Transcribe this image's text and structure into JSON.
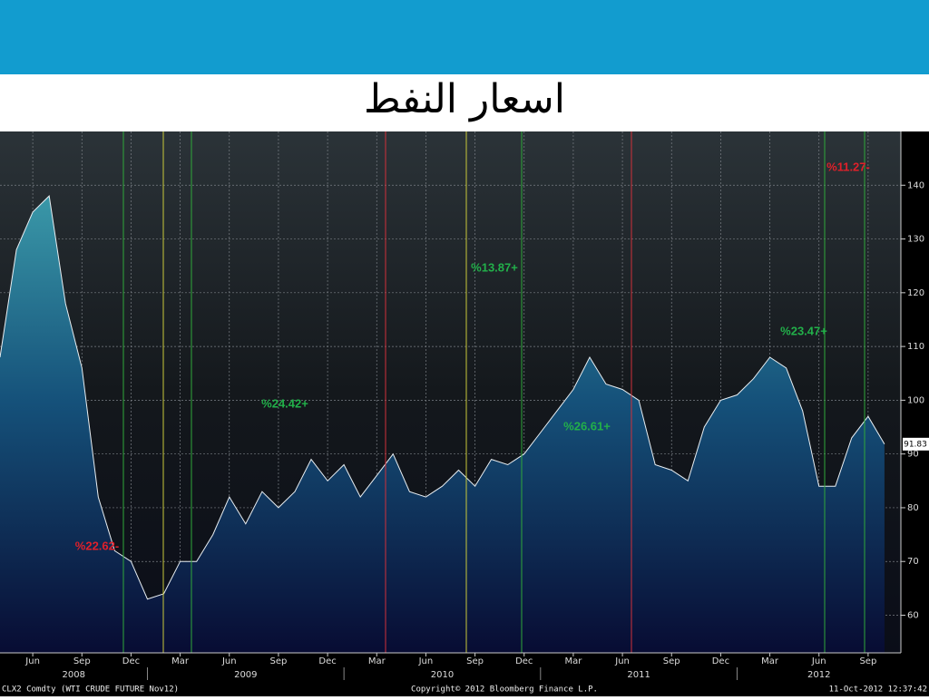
{
  "chart_data": {
    "type": "area",
    "title": "اسعار النفط",
    "x": [
      "2008-04",
      "2008-05",
      "2008-06",
      "2008-07",
      "2008-08",
      "2008-09",
      "2008-10",
      "2008-11",
      "2008-12",
      "2009-01",
      "2009-02",
      "2009-03",
      "2009-04",
      "2009-05",
      "2009-06",
      "2009-07",
      "2009-08",
      "2009-09",
      "2009-10",
      "2009-11",
      "2009-12",
      "2010-01",
      "2010-02",
      "2010-03",
      "2010-04",
      "2010-05",
      "2010-06",
      "2010-07",
      "2010-08",
      "2010-09",
      "2010-10",
      "2010-11",
      "2010-12",
      "2011-01",
      "2011-02",
      "2011-03",
      "2011-04",
      "2011-05",
      "2011-06",
      "2011-07",
      "2011-08",
      "2011-09",
      "2011-10",
      "2011-11",
      "2011-12",
      "2012-01",
      "2012-02",
      "2012-03",
      "2012-04",
      "2012-05",
      "2012-06",
      "2012-07",
      "2012-08",
      "2012-09",
      "2012-10"
    ],
    "values": [
      108,
      128,
      135,
      138,
      118,
      106,
      82,
      72,
      70,
      63,
      64,
      70,
      70,
      75,
      82,
      77,
      83,
      80,
      83,
      89,
      85,
      88,
      82,
      86,
      90,
      83,
      82,
      84,
      87,
      84,
      89,
      88,
      90,
      94,
      98,
      102,
      108,
      103,
      102,
      100,
      88,
      87,
      85,
      95,
      100,
      101,
      104,
      108,
      106,
      98,
      84,
      84,
      93,
      97,
      91.83
    ],
    "color": "#2f8fa6",
    "xlim": [
      "2008-04",
      "2012-11"
    ],
    "ylim": [
      53,
      150
    ],
    "yticks": [
      60,
      70,
      80,
      90,
      100,
      110,
      120,
      130,
      140
    ],
    "xticks": [
      {
        "value": "2008-06",
        "label": "Jun"
      },
      {
        "value": "2008-09",
        "label": "Sep"
      },
      {
        "value": "2008-12",
        "label": "Dec"
      },
      {
        "value": "2009-03",
        "label": "Mar"
      },
      {
        "value": "2009-06",
        "label": "Jun"
      },
      {
        "value": "2009-09",
        "label": "Sep"
      },
      {
        "value": "2009-12",
        "label": "Dec"
      },
      {
        "value": "2010-03",
        "label": "Mar"
      },
      {
        "value": "2010-06",
        "label": "Jun"
      },
      {
        "value": "2010-09",
        "label": "Sep"
      },
      {
        "value": "2010-12",
        "label": "Dec"
      },
      {
        "value": "2011-03",
        "label": "Mar"
      },
      {
        "value": "2011-06",
        "label": "Jun"
      },
      {
        "value": "2011-09",
        "label": "Sep"
      },
      {
        "value": "2011-12",
        "label": "Dec"
      },
      {
        "value": "2012-03",
        "label": "Mar"
      },
      {
        "value": "2012-06",
        "label": "Jun"
      },
      {
        "value": "2012-09",
        "label": "Sep"
      }
    ],
    "years": [
      "2008",
      "2009",
      "2010",
      "2011",
      "2012"
    ],
    "grid": true,
    "last_value": 91.83,
    "annotations": [
      {
        "text": "%22.62-",
        "color": "#e0202a"
      },
      {
        "text": "%24.42+",
        "color": "#22b04a"
      },
      {
        "text": "%13.87+",
        "color": "#22b04a"
      },
      {
        "text": "%26.61+",
        "color": "#22b04a"
      },
      {
        "text": "%23.47+",
        "color": "#22b04a"
      },
      {
        "text": "%11.27-",
        "color": "#e0202a"
      }
    ],
    "footer_left": "CLX2 Comdty (WTI CRUDE FUTURE  Nov12)",
    "footer_center": "Copyright© 2012 Bloomberg Finance L.P.",
    "footer_right": "11-Oct-2012 12:37:42"
  }
}
